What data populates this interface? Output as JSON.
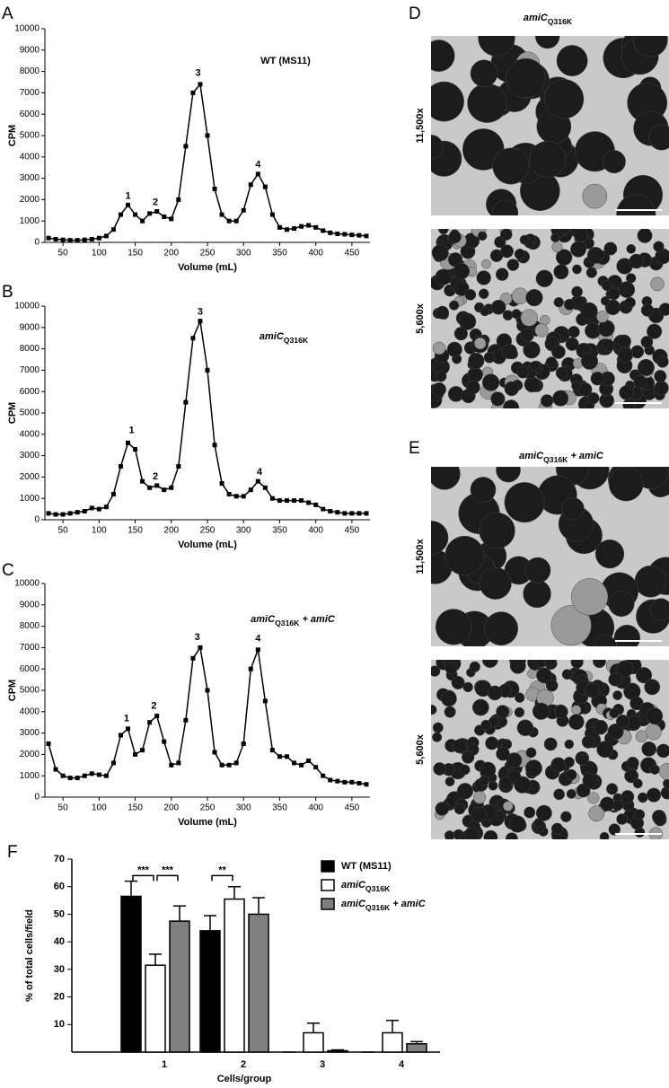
{
  "chart_data": [
    {
      "type": "line",
      "panel": "A",
      "title_parts": [
        {
          "text": "WT (MS11)",
          "style": "bold"
        }
      ],
      "xlabel": "Volume (mL)",
      "ylabel": "CPM",
      "color": "#000000",
      "x": [
        30,
        40,
        50,
        60,
        70,
        80,
        90,
        100,
        110,
        120,
        130,
        140,
        150,
        160,
        170,
        180,
        190,
        200,
        210,
        220,
        230,
        240,
        250,
        260,
        270,
        280,
        290,
        300,
        310,
        320,
        330,
        340,
        350,
        360,
        370,
        380,
        390,
        400,
        410,
        420,
        430,
        440,
        450,
        460,
        470
      ],
      "values": [
        200,
        150,
        120,
        100,
        100,
        120,
        150,
        200,
        300,
        600,
        1300,
        1750,
        1300,
        1000,
        1350,
        1450,
        1200,
        1100,
        2000,
        4500,
        7000,
        7400,
        5000,
        2500,
        1300,
        1000,
        1000,
        1500,
        2700,
        3200,
        2600,
        1300,
        700,
        600,
        650,
        750,
        800,
        700,
        550,
        450,
        400,
        380,
        350,
        330,
        300
      ],
      "annotations": [
        {
          "text": "1",
          "x": 140,
          "y": 1750
        },
        {
          "text": "2",
          "x": 178,
          "y": 1450
        },
        {
          "text": "3",
          "x": 237,
          "y": 7500
        },
        {
          "text": "4",
          "x": 320,
          "y": 3200
        }
      ],
      "xlim": [
        25,
        475
      ],
      "xticks": [
        50,
        100,
        150,
        200,
        250,
        300,
        350,
        400,
        450
      ],
      "ylim": [
        0,
        10000
      ],
      "yticks": [
        0,
        1000,
        2000,
        3000,
        4000,
        5000,
        6000,
        7000,
        8000,
        9000,
        10000
      ]
    },
    {
      "type": "line",
      "panel": "B",
      "title_parts": [
        {
          "text": "amiC",
          "style": "italic"
        },
        {
          "text": "Q316K",
          "style": "sub"
        }
      ],
      "xlabel": "Volume (mL)",
      "ylabel": "CPM",
      "color": "#000000",
      "x": [
        30,
        40,
        50,
        60,
        70,
        80,
        90,
        100,
        110,
        120,
        130,
        140,
        150,
        160,
        170,
        180,
        190,
        200,
        210,
        220,
        230,
        240,
        250,
        260,
        270,
        280,
        290,
        300,
        310,
        320,
        330,
        340,
        350,
        360,
        370,
        380,
        390,
        400,
        410,
        420,
        430,
        440,
        450,
        460,
        470
      ],
      "values": [
        300,
        250,
        250,
        300,
        350,
        400,
        550,
        500,
        600,
        1200,
        2500,
        3600,
        3300,
        1800,
        1500,
        1600,
        1400,
        1500,
        2500,
        5500,
        8500,
        9300,
        7000,
        3500,
        1700,
        1200,
        1100,
        1100,
        1400,
        1800,
        1500,
        1000,
        900,
        900,
        900,
        900,
        800,
        700,
        500,
        400,
        350,
        300,
        300,
        300,
        300
      ],
      "annotations": [
        {
          "text": "1",
          "x": 145,
          "y": 3750
        },
        {
          "text": "2",
          "x": 178,
          "y": 1600
        },
        {
          "text": "3",
          "x": 240,
          "y": 9300
        },
        {
          "text": "4",
          "x": 322,
          "y": 1800
        }
      ],
      "xlim": [
        25,
        475
      ],
      "xticks": [
        50,
        100,
        150,
        200,
        250,
        300,
        350,
        400,
        450
      ],
      "ylim": [
        0,
        10000
      ],
      "yticks": [
        0,
        1000,
        2000,
        3000,
        4000,
        5000,
        6000,
        7000,
        8000,
        9000,
        10000
      ]
    },
    {
      "type": "line",
      "panel": "C",
      "title_parts": [
        {
          "text": "amiC",
          "style": "italic"
        },
        {
          "text": "Q316K",
          "style": "sub"
        },
        {
          "text": " + amiC",
          "style": "italic"
        }
      ],
      "xlabel": "Volume (mL)",
      "ylabel": "CPM",
      "color": "#000000",
      "x": [
        30,
        40,
        50,
        60,
        70,
        80,
        90,
        100,
        110,
        120,
        130,
        140,
        150,
        160,
        170,
        180,
        190,
        200,
        210,
        220,
        230,
        240,
        250,
        260,
        270,
        280,
        290,
        300,
        310,
        320,
        330,
        340,
        350,
        360,
        370,
        380,
        390,
        400,
        410,
        420,
        430,
        440,
        450,
        460,
        470
      ],
      "values": [
        2500,
        1300,
        1000,
        900,
        900,
        1000,
        1100,
        1050,
        1000,
        1600,
        2900,
        3200,
        2000,
        2200,
        3500,
        3800,
        2600,
        1500,
        1600,
        3600,
        6500,
        7000,
        5000,
        2100,
        1500,
        1500,
        1600,
        2500,
        6000,
        6900,
        4500,
        2200,
        1900,
        1900,
        1600,
        1500,
        1700,
        1400,
        1000,
        800,
        750,
        700,
        700,
        650,
        600
      ],
      "annotations": [
        {
          "text": "1",
          "x": 138,
          "y": 3250
        },
        {
          "text": "2",
          "x": 176,
          "y": 3850
        },
        {
          "text": "3",
          "x": 236,
          "y": 7050
        },
        {
          "text": "4",
          "x": 320,
          "y": 7000
        }
      ],
      "xlim": [
        25,
        475
      ],
      "xticks": [
        50,
        100,
        150,
        200,
        250,
        300,
        350,
        400,
        450
      ],
      "ylim": [
        0,
        10000
      ],
      "yticks": [
        0,
        1000,
        2000,
        3000,
        4000,
        5000,
        6000,
        7000,
        8000,
        9000,
        10000
      ]
    },
    {
      "type": "bar",
      "panel": "F",
      "xlabel": "Cells/group",
      "ylabel": "% of total cells/field",
      "categories": [
        "1",
        "2",
        "3",
        "4"
      ],
      "series": [
        {
          "name_parts": [
            {
              "text": "WT (MS11)",
              "style": "bold"
            }
          ],
          "color": "#000000",
          "values": [
            56.5,
            44,
            0,
            0
          ],
          "errors": [
            5.5,
            5.5,
            0,
            0
          ]
        },
        {
          "name_parts": [
            {
              "text": "amiC",
              "style": "italic"
            },
            {
              "text": "Q316K",
              "style": "sub"
            }
          ],
          "color": "#ffffff",
          "values": [
            31.5,
            55.5,
            7,
            7
          ],
          "errors": [
            4,
            4.5,
            3.5,
            4.5
          ]
        },
        {
          "name_parts": [
            {
              "text": "amiC",
              "style": "italic"
            },
            {
              "text": "Q316K",
              "style": "sub"
            },
            {
              "text": " + amiC",
              "style": "italic"
            }
          ],
          "color": "#808080",
          "values": [
            47.5,
            50,
            0.5,
            3
          ],
          "errors": [
            5.5,
            6,
            0.3,
            0.8
          ]
        }
      ],
      "significance": [
        {
          "text": "***",
          "category": 0,
          "series": [
            0,
            1
          ],
          "y": 64
        },
        {
          "text": "***",
          "category": 0,
          "series": [
            1,
            2
          ],
          "y": 64
        },
        {
          "text": "**",
          "category": 1,
          "series": [
            0,
            1
          ],
          "y": 64
        }
      ],
      "ylim": [
        0,
        70
      ],
      "yticks": [
        10,
        20,
        30,
        40,
        50,
        60,
        70
      ]
    }
  ],
  "micrographs": [
    {
      "panel": "D",
      "title_parts": [
        {
          "text": "amiC",
          "style": "italic"
        },
        {
          "text": "Q316K",
          "style": "sub"
        }
      ],
      "magnifications": [
        "11,500x",
        "5,600x"
      ]
    },
    {
      "panel": "E",
      "title_parts": [
        {
          "text": "amiC",
          "style": "italic"
        },
        {
          "text": "Q316K",
          "style": "sub"
        },
        {
          "text": " + amiC",
          "style": "italic"
        }
      ],
      "magnifications": [
        "11,500x",
        "5,600x"
      ]
    }
  ]
}
